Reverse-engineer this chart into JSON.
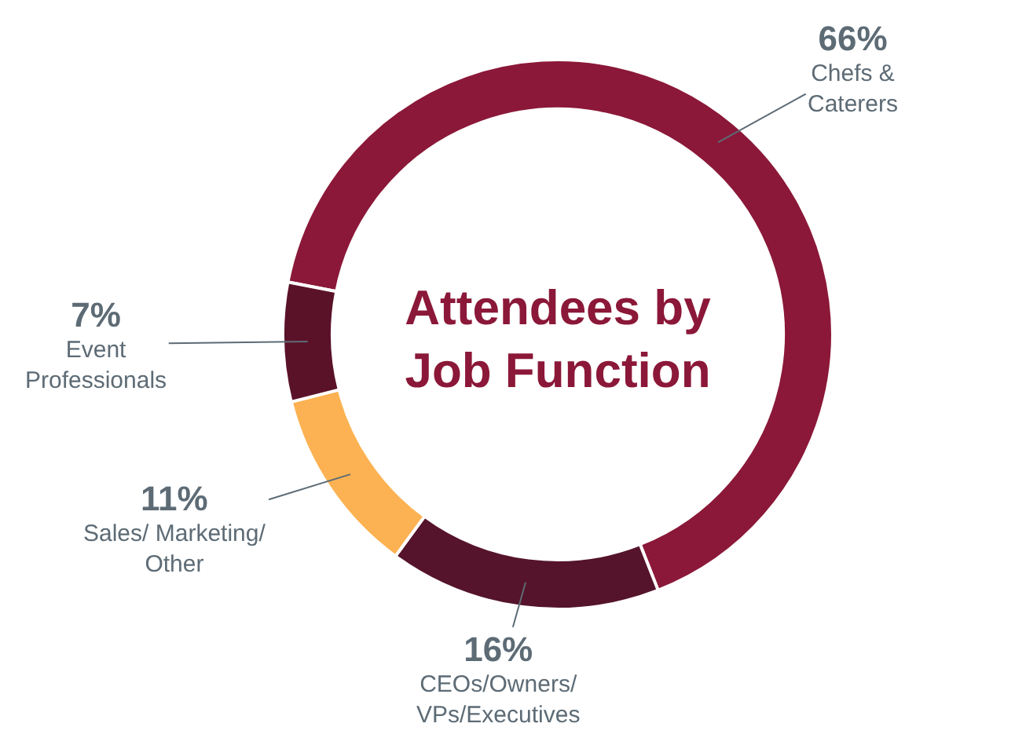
{
  "chart_data": {
    "type": "donut",
    "title": "Attendees by\nJob Function",
    "categories": [
      "Chefs &\nCaterers",
      "CEOs/Owners/\nVPs/Executives",
      "Sales/ Marketing/\nOther",
      "Event\nProfessionals"
    ],
    "values": [
      66,
      16,
      11,
      7
    ],
    "value_labels": [
      "66%",
      "16%",
      "11%",
      "7%"
    ],
    "colors": [
      "#8b1838",
      "#55142b",
      "#fcb252",
      "#5a1229"
    ],
    "legend": false
  }
}
